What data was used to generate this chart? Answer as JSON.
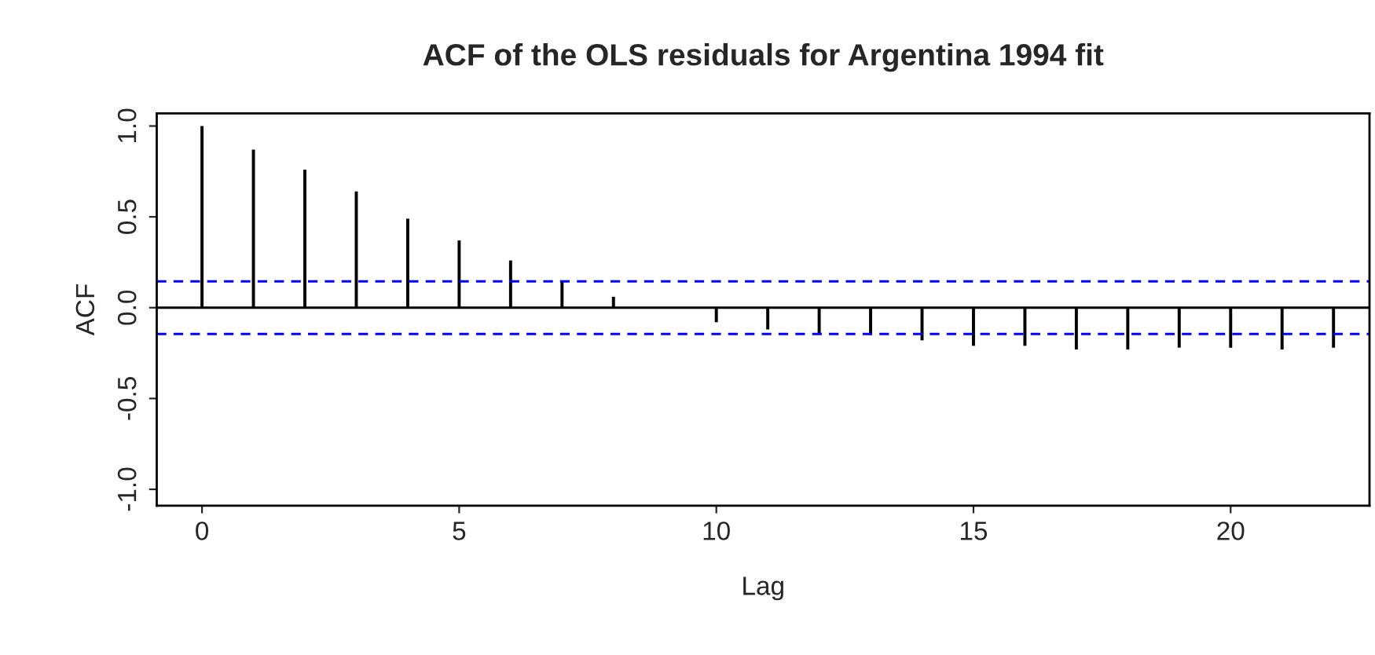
{
  "chart_data": {
    "type": "bar",
    "title": "ACF of the OLS residuals for Argentina 1994 fit",
    "xlabel": "Lag",
    "ylabel": "ACF",
    "x": [
      0,
      1,
      2,
      3,
      4,
      5,
      6,
      7,
      8,
      9,
      10,
      11,
      12,
      13,
      14,
      15,
      16,
      17,
      18,
      19,
      20,
      21,
      22
    ],
    "values": [
      1.0,
      0.87,
      0.76,
      0.64,
      0.49,
      0.37,
      0.26,
      0.15,
      0.06,
      null,
      -0.08,
      -0.12,
      -0.14,
      -0.15,
      -0.18,
      -0.21,
      -0.21,
      -0.23,
      -0.23,
      -0.22,
      -0.22,
      -0.23,
      -0.22
    ],
    "color": "#000000",
    "xlim": [
      -0.88,
      22.7
    ],
    "ylim": [
      -1.09,
      1.07
    ],
    "xticks": [
      0,
      5,
      10,
      15,
      20
    ],
    "yticks": [
      {
        "value": -1.0,
        "label": "-1.0"
      },
      {
        "value": -0.5,
        "label": "-0.5"
      },
      {
        "value": 0.0,
        "label": "0.0"
      },
      {
        "value": 0.5,
        "label": "0.5"
      },
      {
        "value": 1.0,
        "label": "1.0"
      }
    ],
    "ref_lines": [
      {
        "axis": "y",
        "value": 0.0,
        "color": "#000000",
        "line_style": "solid"
      },
      {
        "axis": "y",
        "value": 0.145,
        "color": "#0000ff",
        "line_style": "dashed"
      },
      {
        "axis": "y",
        "value": -0.145,
        "color": "#0000ff",
        "line_style": "dashed"
      }
    ],
    "grid": false,
    "legend": false
  }
}
